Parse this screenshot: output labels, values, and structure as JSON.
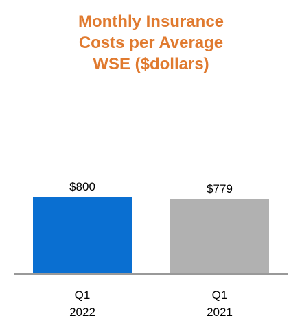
{
  "chart_data": {
    "type": "bar",
    "title_lines": [
      "Monthly Insurance",
      "Costs per Average",
      "WSE ($dollars)"
    ],
    "categories": [
      {
        "lines": [
          "Q1",
          "2022"
        ]
      },
      {
        "lines": [
          "Q1",
          "2021"
        ]
      }
    ],
    "values": [
      800,
      779
    ],
    "data_labels": [
      "$800",
      "$779"
    ],
    "colors": [
      "#0a6fd1",
      "#b1b1b1"
    ],
    "ylim": [
      0,
      1000
    ],
    "grid": false,
    "legend": "none"
  },
  "colors": {
    "title": "#e07a2f",
    "baseline": "#999999"
  }
}
